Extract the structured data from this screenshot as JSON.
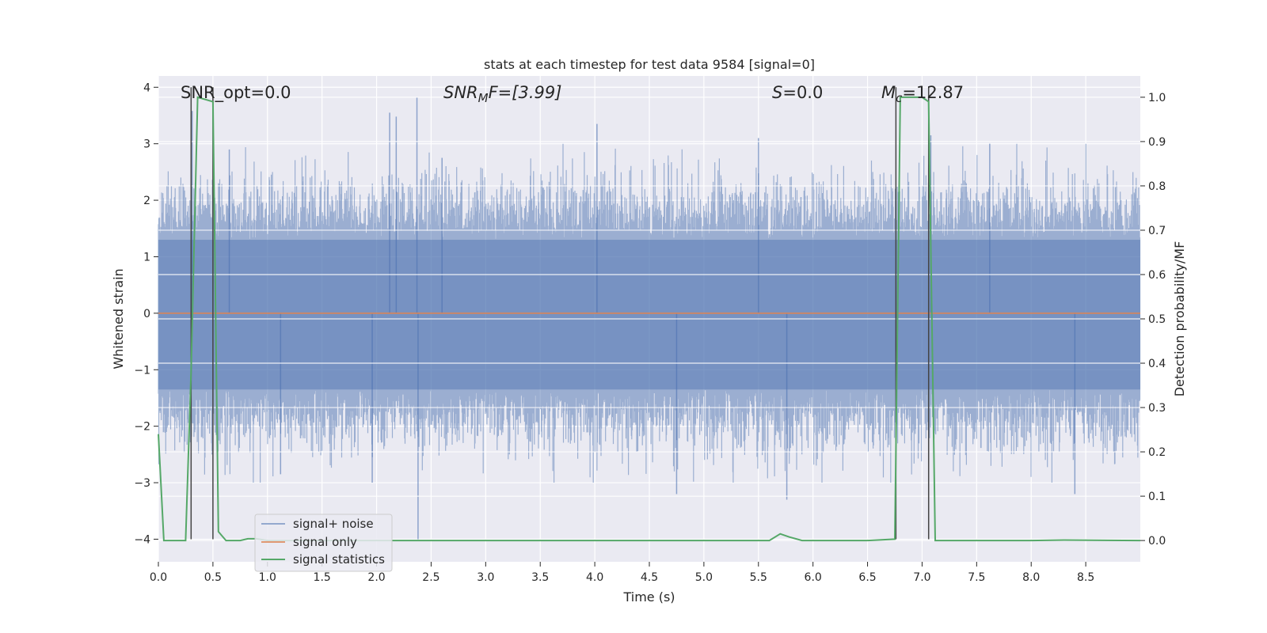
{
  "chart_data": {
    "type": "line",
    "title": "stats at each timestep for test data 9584 [signal=0]",
    "xlabel": "Time (s)",
    "ylabel_left": "Whitened strain",
    "ylabel_right": "Detection probability/MF",
    "xlim": [
      0.0,
      9.0
    ],
    "ylim_left": [
      -4.4,
      4.2
    ],
    "ylim_right": [
      -0.048,
      1.048
    ],
    "x_ticks": [
      0.0,
      0.5,
      1.0,
      1.5,
      2.0,
      2.5,
      3.0,
      3.5,
      4.0,
      4.5,
      5.0,
      5.5,
      6.0,
      6.5,
      7.0,
      7.5,
      8.0,
      8.5
    ],
    "x_tick_labels": [
      "0.0",
      "0.5",
      "1.0",
      "1.5",
      "2.0",
      "2.5",
      "3.0",
      "3.5",
      "4.0",
      "4.5",
      "5.0",
      "5.5",
      "6.0",
      "6.5",
      "7.0",
      "7.5",
      "8.0",
      "8.5"
    ],
    "y_ticks_left": [
      -4,
      -3,
      -2,
      -1,
      0,
      1,
      2,
      3,
      4
    ],
    "y_tick_labels_left": [
      "−4",
      "−3",
      "−2",
      "−1",
      "0",
      "1",
      "2",
      "3",
      "4"
    ],
    "y_ticks_right": [
      0.0,
      0.1,
      0.2,
      0.3,
      0.4,
      0.5,
      0.6,
      0.7,
      0.8,
      0.9,
      1.0
    ],
    "y_tick_labels_right": [
      "0.0",
      "0.1",
      "0.2",
      "0.3",
      "0.4",
      "0.5",
      "0.6",
      "0.7",
      "0.8",
      "0.9",
      "1.0"
    ],
    "grid": true,
    "annotations": {
      "snr_opt": "SNR_opt=0.0",
      "snr_mf_main": "SNR",
      "snr_mf_sub": "M",
      "snr_mf_rest": "F=[3.99]",
      "s_sym": "S",
      "s_val": "=0.0",
      "mc_main": "M",
      "mc_sub": "c",
      "mc_val": "=12.87"
    },
    "detection_markers": [
      {
        "x": 0.3,
        "ymin": -4,
        "ymax": 4
      },
      {
        "x": 0.5,
        "ymin": -4,
        "ymax": 4
      },
      {
        "x": 6.76,
        "ymin": -4,
        "ymax": 4
      },
      {
        "x": 7.06,
        "ymin": -4,
        "ymax": 4
      }
    ],
    "legend": {
      "position": "lower-left",
      "entries": [
        "signal+ noise",
        "signal only",
        "signal statistics"
      ]
    },
    "series": [
      {
        "name": "signal+ noise",
        "axis": "left",
        "color": "#4c72b0",
        "sample_count": 2400,
        "envelope": {
          "core_pos": 1.3,
          "core_neg": -1.35,
          "typical_max": 2.2,
          "typical_min": -2.3
        },
        "spikes": [
          {
            "x": 2.37,
            "y": 3.82
          },
          {
            "x": 2.38,
            "y": -4.0
          },
          {
            "x": 2.12,
            "y": 3.55
          },
          {
            "x": 2.18,
            "y": 3.48
          },
          {
            "x": 0.31,
            "y": 3.58
          },
          {
            "x": 4.02,
            "y": 3.35
          },
          {
            "x": 5.5,
            "y": 3.1
          },
          {
            "x": 4.75,
            "y": -3.2
          },
          {
            "x": 5.76,
            "y": -3.3
          },
          {
            "x": 7.08,
            "y": 3.15
          },
          {
            "x": 1.96,
            "y": -3.0
          },
          {
            "x": 8.4,
            "y": -3.2
          },
          {
            "x": 0.65,
            "y": 2.9
          },
          {
            "x": 2.6,
            "y": 2.75
          },
          {
            "x": 7.62,
            "y": 3.0
          },
          {
            "x": 1.12,
            "y": -2.85
          }
        ]
      },
      {
        "name": "signal only",
        "axis": "left",
        "color": "#dd8452",
        "x": [
          0.0,
          9.0
        ],
        "y": [
          0.0,
          0.0
        ]
      },
      {
        "name": "signal statistics",
        "axis": "right",
        "color": "#55a868",
        "x": [
          0.0,
          0.05,
          0.25,
          0.3,
          0.36,
          0.5,
          0.55,
          0.62,
          0.75,
          0.82,
          0.9,
          1.0,
          2.0,
          3.0,
          4.0,
          5.0,
          5.6,
          5.7,
          5.78,
          5.9,
          6.5,
          6.75,
          6.8,
          7.0,
          7.06,
          7.12,
          7.2,
          8.0,
          8.3,
          9.0
        ],
        "y": [
          0.24,
          0.0,
          0.0,
          0.38,
          1.0,
          0.99,
          0.02,
          0.0,
          0.0,
          0.004,
          0.004,
          0.0,
          0.0,
          0.0,
          0.0,
          0.0,
          0.0,
          0.015,
          0.008,
          0.0,
          0.0,
          0.003,
          1.0,
          1.0,
          0.99,
          0.0,
          0.0,
          0.0,
          0.001,
          0.0
        ]
      }
    ]
  }
}
